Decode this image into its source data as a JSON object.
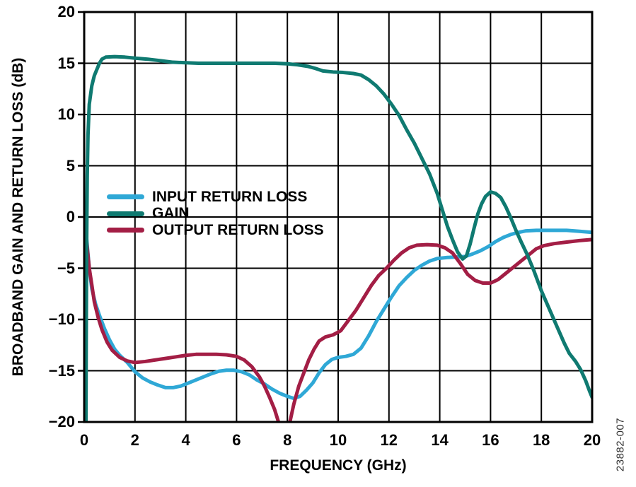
{
  "figure_code": "23882-007",
  "colors": {
    "background": "#ffffff",
    "axis": "#000000",
    "grid": "#000000",
    "text": "#000000",
    "watermark": "#333333"
  },
  "chart_data": {
    "type": "line",
    "title": "",
    "xlabel": "FREQUENCY (GHz)",
    "ylabel": "BROADBAND GAIN AND RETURN LOSS (dB)",
    "xlim": [
      0,
      20
    ],
    "ylim": [
      -20,
      20
    ],
    "x_ticks": [
      0,
      2,
      4,
      6,
      8,
      10,
      12,
      14,
      16,
      18,
      20
    ],
    "y_ticks": [
      20,
      15,
      10,
      5,
      0,
      -5,
      -10,
      -15,
      -20
    ],
    "grid": true,
    "legend_position": "inside-left-middle",
    "draw_order": [
      0,
      2,
      1
    ],
    "series": [
      {
        "name": "INPUT RETURN LOSS",
        "color": "#2FA8D6",
        "points": [
          [
            0.02,
            -0.3
          ],
          [
            0.1,
            -2.2
          ],
          [
            0.2,
            -5
          ],
          [
            0.3,
            -7
          ],
          [
            0.45,
            -8.5
          ],
          [
            0.6,
            -9.6
          ],
          [
            0.8,
            -10.9
          ],
          [
            1,
            -12
          ],
          [
            1.2,
            -12.9
          ],
          [
            1.4,
            -13.5
          ],
          [
            1.7,
            -14.2
          ],
          [
            2,
            -15.1
          ],
          [
            2.3,
            -15.7
          ],
          [
            2.6,
            -16.1
          ],
          [
            2.9,
            -16.4
          ],
          [
            3.2,
            -16.65
          ],
          [
            3.5,
            -16.65
          ],
          [
            3.8,
            -16.5
          ],
          [
            4.1,
            -16.2
          ],
          [
            4.4,
            -15.9
          ],
          [
            4.7,
            -15.6
          ],
          [
            5,
            -15.3
          ],
          [
            5.3,
            -15.05
          ],
          [
            5.6,
            -14.95
          ],
          [
            5.9,
            -14.95
          ],
          [
            6.2,
            -15.1
          ],
          [
            6.5,
            -15.4
          ],
          [
            6.8,
            -15.9
          ],
          [
            7.1,
            -16.3
          ],
          [
            7.4,
            -16.8
          ],
          [
            7.7,
            -17.2
          ],
          [
            8,
            -17.5
          ],
          [
            8.25,
            -17.7
          ],
          [
            8.5,
            -17.5
          ],
          [
            8.75,
            -16.9
          ],
          [
            9,
            -16.2
          ],
          [
            9.25,
            -15.2
          ],
          [
            9.5,
            -14.4
          ],
          [
            9.75,
            -13.9
          ],
          [
            10,
            -13.7
          ],
          [
            10.3,
            -13.6
          ],
          [
            10.6,
            -13.4
          ],
          [
            10.9,
            -12.8
          ],
          [
            11.2,
            -11.6
          ],
          [
            11.5,
            -10.2
          ],
          [
            11.8,
            -9
          ],
          [
            12.1,
            -7.8
          ],
          [
            12.4,
            -6.7
          ],
          [
            12.7,
            -5.9
          ],
          [
            13,
            -5.2
          ],
          [
            13.3,
            -4.7
          ],
          [
            13.6,
            -4.3
          ],
          [
            13.9,
            -4.05
          ],
          [
            14.3,
            -3.95
          ],
          [
            14.7,
            -3.9
          ],
          [
            15,
            -3.85
          ],
          [
            15.3,
            -3.6
          ],
          [
            15.6,
            -3.3
          ],
          [
            15.9,
            -2.9
          ],
          [
            16.2,
            -2.4
          ],
          [
            16.5,
            -2
          ],
          [
            16.8,
            -1.7
          ],
          [
            17.1,
            -1.5
          ],
          [
            17.4,
            -1.35
          ],
          [
            17.8,
            -1.3
          ],
          [
            18.4,
            -1.3
          ],
          [
            19,
            -1.3
          ],
          [
            19.5,
            -1.4
          ],
          [
            20,
            -1.5
          ]
        ]
      },
      {
        "name": "GAIN",
        "color": "#0F7A71",
        "points": [
          [
            0.07,
            -20
          ],
          [
            0.08,
            -12
          ],
          [
            0.1,
            -2
          ],
          [
            0.12,
            4
          ],
          [
            0.15,
            8
          ],
          [
            0.2,
            11
          ],
          [
            0.3,
            12.8
          ],
          [
            0.4,
            13.8
          ],
          [
            0.5,
            14.4
          ],
          [
            0.6,
            15
          ],
          [
            0.7,
            15.4
          ],
          [
            0.85,
            15.6
          ],
          [
            1.2,
            15.65
          ],
          [
            1.6,
            15.6
          ],
          [
            2,
            15.5
          ],
          [
            2.5,
            15.4
          ],
          [
            3,
            15.25
          ],
          [
            3.5,
            15.1
          ],
          [
            4,
            15.05
          ],
          [
            4.5,
            15
          ],
          [
            5,
            15
          ],
          [
            5.5,
            15
          ],
          [
            6,
            15
          ],
          [
            6.5,
            15
          ],
          [
            7,
            15
          ],
          [
            7.5,
            15
          ],
          [
            8,
            14.95
          ],
          [
            8.4,
            14.85
          ],
          [
            8.8,
            14.7
          ],
          [
            9.1,
            14.5
          ],
          [
            9.4,
            14.25
          ],
          [
            9.8,
            14.15
          ],
          [
            10.2,
            14.1
          ],
          [
            10.6,
            14
          ],
          [
            10.9,
            13.85
          ],
          [
            11.2,
            13.4
          ],
          [
            11.5,
            12.8
          ],
          [
            11.8,
            12
          ],
          [
            12.1,
            11
          ],
          [
            12.4,
            9.9
          ],
          [
            12.7,
            8.5
          ],
          [
            13,
            7.2
          ],
          [
            13.3,
            5.7
          ],
          [
            13.6,
            4.2
          ],
          [
            13.9,
            2.3
          ],
          [
            14.1,
            0.7
          ],
          [
            14.3,
            -0.9
          ],
          [
            14.5,
            -2.2
          ],
          [
            14.7,
            -3.4
          ],
          [
            14.9,
            -4.1
          ],
          [
            15.05,
            -3.8
          ],
          [
            15.2,
            -2.6
          ],
          [
            15.35,
            -1.1
          ],
          [
            15.5,
            0.3
          ],
          [
            15.65,
            1.3
          ],
          [
            15.8,
            2
          ],
          [
            16,
            2.45
          ],
          [
            16.2,
            2.3
          ],
          [
            16.4,
            1.9
          ],
          [
            16.6,
            1
          ],
          [
            16.8,
            -0.1
          ],
          [
            17,
            -1.3
          ],
          [
            17.2,
            -2.4
          ],
          [
            17.45,
            -3.7
          ],
          [
            17.7,
            -5.2
          ],
          [
            18,
            -7.2
          ],
          [
            18.3,
            -8.9
          ],
          [
            18.6,
            -10.6
          ],
          [
            18.9,
            -12.3
          ],
          [
            19.1,
            -13.3
          ],
          [
            19.35,
            -14.1
          ],
          [
            19.55,
            -14.9
          ],
          [
            19.75,
            -16
          ],
          [
            19.9,
            -17
          ],
          [
            20,
            -17.6
          ]
        ]
      },
      {
        "name": "OUTPUT RETURN LOSS",
        "color": "#A31E45",
        "points": [
          [
            0.02,
            -0.2
          ],
          [
            0.1,
            -2.5
          ],
          [
            0.2,
            -5
          ],
          [
            0.3,
            -6.6
          ],
          [
            0.4,
            -8.3
          ],
          [
            0.55,
            -9.8
          ],
          [
            0.7,
            -11
          ],
          [
            0.9,
            -12.2
          ],
          [
            1.1,
            -13
          ],
          [
            1.4,
            -13.7
          ],
          [
            1.7,
            -14.05
          ],
          [
            2,
            -14.2
          ],
          [
            2.4,
            -14.1
          ],
          [
            2.8,
            -13.95
          ],
          [
            3.2,
            -13.8
          ],
          [
            3.6,
            -13.65
          ],
          [
            4,
            -13.5
          ],
          [
            4.4,
            -13.4
          ],
          [
            4.8,
            -13.4
          ],
          [
            5.2,
            -13.4
          ],
          [
            5.6,
            -13.45
          ],
          [
            6,
            -13.6
          ],
          [
            6.3,
            -13.95
          ],
          [
            6.6,
            -14.6
          ],
          [
            6.9,
            -15.6
          ],
          [
            7.1,
            -16.5
          ],
          [
            7.3,
            -17.6
          ],
          [
            7.5,
            -18.8
          ],
          [
            7.65,
            -20
          ],
          [
            7.8,
            -21
          ],
          [
            8,
            -21
          ],
          [
            8.1,
            -20
          ],
          [
            8.25,
            -18.3
          ],
          [
            8.45,
            -16.5
          ],
          [
            8.65,
            -15.2
          ],
          [
            8.85,
            -13.9
          ],
          [
            9.05,
            -12.9
          ],
          [
            9.25,
            -12.1
          ],
          [
            9.5,
            -11.7
          ],
          [
            9.8,
            -11.5
          ],
          [
            10.1,
            -11.1
          ],
          [
            10.4,
            -10.1
          ],
          [
            10.7,
            -9.1
          ],
          [
            11,
            -7.9
          ],
          [
            11.3,
            -6.7
          ],
          [
            11.6,
            -5.7
          ],
          [
            11.9,
            -5
          ],
          [
            12.2,
            -4.2
          ],
          [
            12.5,
            -3.5
          ],
          [
            12.8,
            -3
          ],
          [
            13.1,
            -2.75
          ],
          [
            13.5,
            -2.7
          ],
          [
            13.9,
            -2.75
          ],
          [
            14.2,
            -3
          ],
          [
            14.5,
            -3.5
          ],
          [
            14.8,
            -4.5
          ],
          [
            15.1,
            -5.6
          ],
          [
            15.4,
            -6.2
          ],
          [
            15.7,
            -6.45
          ],
          [
            16,
            -6.45
          ],
          [
            16.3,
            -6.1
          ],
          [
            16.6,
            -5.5
          ],
          [
            16.9,
            -4.9
          ],
          [
            17.2,
            -4.3
          ],
          [
            17.5,
            -3.7
          ],
          [
            17.8,
            -3.1
          ],
          [
            18.1,
            -2.8
          ],
          [
            18.5,
            -2.6
          ],
          [
            19,
            -2.45
          ],
          [
            19.5,
            -2.3
          ],
          [
            20,
            -2.2
          ]
        ]
      }
    ]
  }
}
